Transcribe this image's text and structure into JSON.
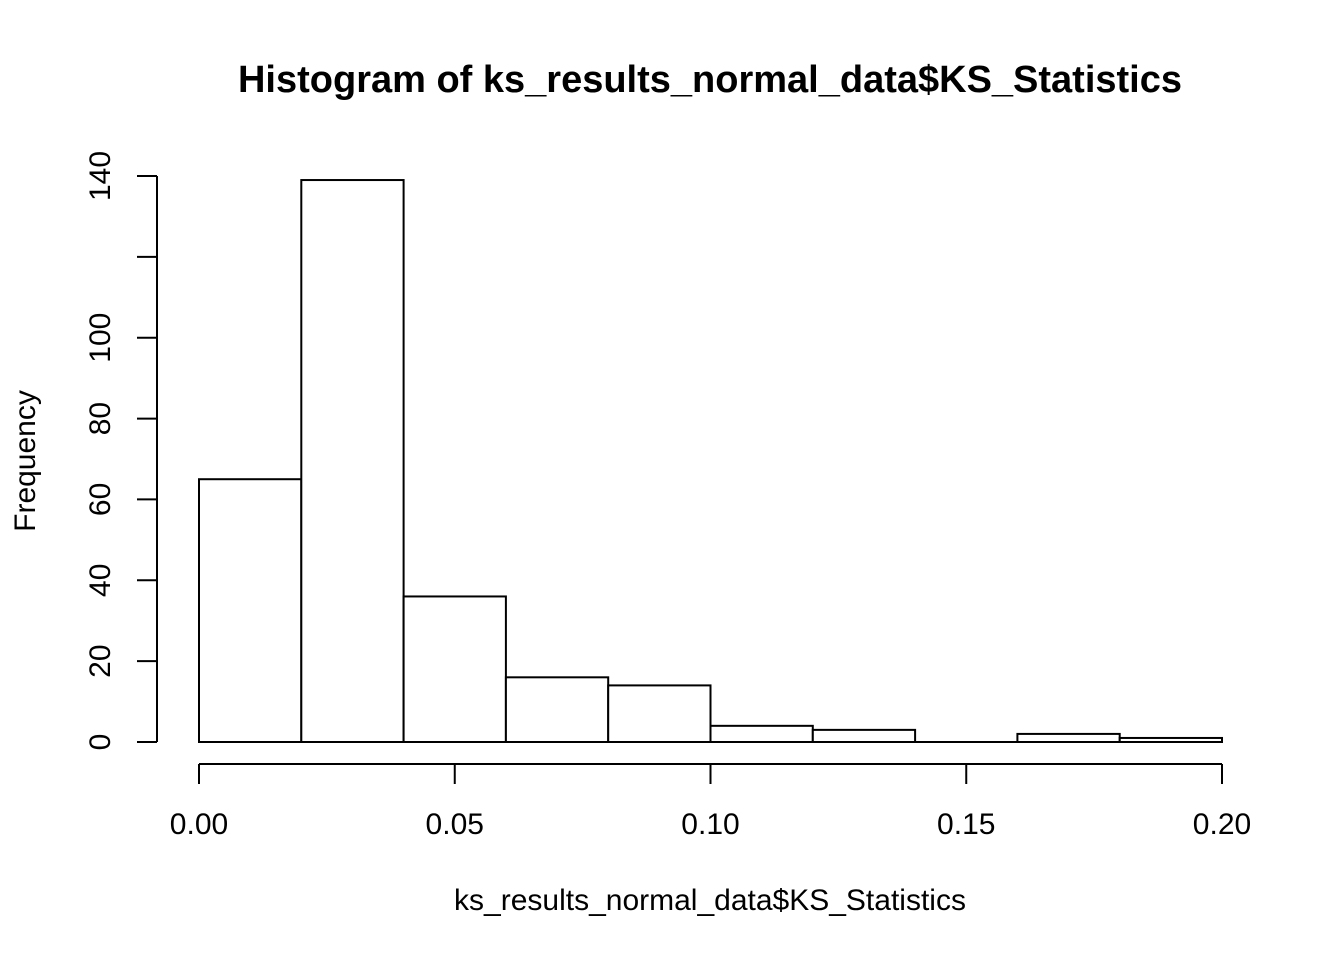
{
  "chart_data": {
    "type": "bar",
    "title": "Histogram of ks_results_normal_data$KS_Statistics",
    "xlabel": "ks_results_normal_data$KS_Statistics",
    "ylabel": "Frequency",
    "bins": [
      {
        "from": 0.0,
        "to": 0.02,
        "count": 65
      },
      {
        "from": 0.02,
        "to": 0.04,
        "count": 139
      },
      {
        "from": 0.04,
        "to": 0.06,
        "count": 36
      },
      {
        "from": 0.06,
        "to": 0.08,
        "count": 16
      },
      {
        "from": 0.08,
        "to": 0.1,
        "count": 14
      },
      {
        "from": 0.1,
        "to": 0.12,
        "count": 4
      },
      {
        "from": 0.12,
        "to": 0.14,
        "count": 3
      },
      {
        "from": 0.14,
        "to": 0.16,
        "count": 0
      },
      {
        "from": 0.16,
        "to": 0.18,
        "count": 2
      },
      {
        "from": 0.18,
        "to": 0.2,
        "count": 1
      }
    ],
    "xlim": [
      0.0,
      0.2
    ],
    "ylim": [
      0,
      140
    ],
    "x_ticks": [
      0.0,
      0.05,
      0.1,
      0.15,
      0.2
    ],
    "x_tick_labels": [
      "0.00",
      "0.05",
      "0.10",
      "0.15",
      "0.20"
    ],
    "y_ticks": [
      0,
      20,
      40,
      60,
      80,
      100,
      120,
      140
    ],
    "y_tick_labels": [
      "0",
      "20",
      "40",
      "60",
      "80",
      "100",
      "",
      "140"
    ],
    "grid": false,
    "bar_fill": "#ffffff",
    "bar_stroke": "#000000"
  }
}
